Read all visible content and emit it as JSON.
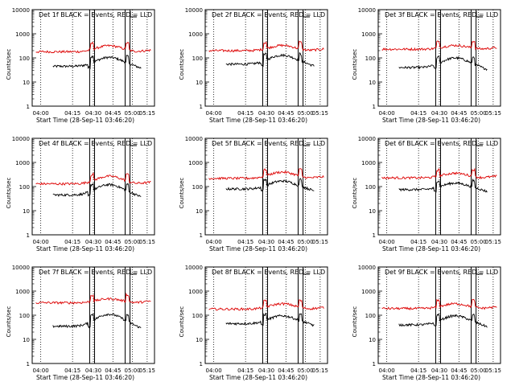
{
  "chart_data": [
    {
      "type": "line",
      "title": "Det 1f BLACK = Events, RED = LLD",
      "ylabel": "Counts/sec",
      "xlabel": "Start Time (28-Sep-11 03:46:20)",
      "xticks": [
        "04:00",
        "04:15",
        "04:30",
        "04:45",
        "05:00",
        "05:15"
      ],
      "yticks": [
        "1",
        "10",
        "100",
        "1000",
        "10000"
      ],
      "yscale": "log",
      "ylim": [
        1,
        10000
      ],
      "series": [
        {
          "color": "#000000",
          "base": 45,
          "peak": 105
        },
        {
          "color": "#dd0000",
          "base": 180,
          "peak": 320
        }
      ]
    },
    {
      "type": "line",
      "title": "Det 2f BLACK = Events, RED = LLD",
      "ylabel": "Counts/sec",
      "xlabel": "Start Time (28-Sep-11 03:46:20)",
      "xticks": [
        "04:00",
        "04:15",
        "04:30",
        "04:45",
        "05:00",
        "05:15"
      ],
      "yticks": [
        "1",
        "10",
        "100",
        "1000",
        "10000"
      ],
      "yscale": "log",
      "ylim": [
        1,
        10000
      ],
      "series": [
        {
          "color": "#000000",
          "base": 55,
          "peak": 130
        },
        {
          "color": "#dd0000",
          "base": 200,
          "peak": 330
        }
      ]
    },
    {
      "type": "line",
      "title": "Det 3f BLACK = Events, RED = LLD",
      "ylabel": "Counts/sec",
      "xlabel": "Start Time (28-Sep-11 03:46:20)",
      "xticks": [
        "04:00",
        "04:15",
        "04:30",
        "04:45",
        "05:00",
        "05:15"
      ],
      "yticks": [
        "1",
        "10",
        "100",
        "1000",
        "10000"
      ],
      "yscale": "log",
      "ylim": [
        1,
        10000
      ],
      "series": [
        {
          "color": "#000000",
          "base": 40,
          "peak": 100
        },
        {
          "color": "#dd0000",
          "base": 230,
          "peak": 330
        }
      ]
    },
    {
      "type": "line",
      "title": "Det 4f BLACK = Events, RED = LLD",
      "ylabel": "Counts/sec",
      "xlabel": "Start Time (28-Sep-11 03:46:20)",
      "xticks": [
        "04:00",
        "04:15",
        "04:30",
        "04:45",
        "05:00",
        "05:15"
      ],
      "yticks": [
        "1",
        "10",
        "100",
        "1000",
        "10000"
      ],
      "yscale": "log",
      "ylim": [
        1,
        10000
      ],
      "series": [
        {
          "color": "#000000",
          "base": 45,
          "peak": 120
        },
        {
          "color": "#dd0000",
          "base": 130,
          "peak": 270
        }
      ]
    },
    {
      "type": "line",
      "title": "Det 5f BLACK = Events, RED = LLD",
      "ylabel": "Counts/sec",
      "xlabel": "Start Time (28-Sep-11 03:46:20)",
      "xticks": [
        "04:00",
        "04:15",
        "04:30",
        "04:45",
        "05:00",
        "05:15"
      ],
      "yticks": [
        "1",
        "10",
        "100",
        "1000",
        "10000"
      ],
      "yscale": "log",
      "ylim": [
        1,
        10000
      ],
      "series": [
        {
          "color": "#000000",
          "base": 80,
          "peak": 170
        },
        {
          "color": "#dd0000",
          "base": 220,
          "peak": 400
        }
      ]
    },
    {
      "type": "line",
      "title": "Det 6f BLACK = Events, RED = LLD",
      "ylabel": "Counts/sec",
      "xlabel": "Start Time (28-Sep-11 03:46:20)",
      "xticks": [
        "04:00",
        "04:15",
        "04:30",
        "04:45",
        "05:00",
        "05:15"
      ],
      "yticks": [
        "1",
        "10",
        "100",
        "1000",
        "10000"
      ],
      "yscale": "log",
      "ylim": [
        1,
        10000
      ],
      "series": [
        {
          "color": "#000000",
          "base": 75,
          "peak": 140
        },
        {
          "color": "#dd0000",
          "base": 230,
          "peak": 360
        }
      ]
    },
    {
      "type": "line",
      "title": "Det 7f BLACK = Events, RED = LLD",
      "ylabel": "Counts/sec",
      "xlabel": "Start Time (28-Sep-11 03:46:20)",
      "xticks": [
        "04:00",
        "04:15",
        "04:30",
        "04:45",
        "05:00",
        "05:15"
      ],
      "yticks": [
        "1",
        "10",
        "100",
        "1000",
        "10000"
      ],
      "yscale": "log",
      "ylim": [
        1,
        10000
      ],
      "series": [
        {
          "color": "#000000",
          "base": 35,
          "peak": 110
        },
        {
          "color": "#dd0000",
          "base": 330,
          "peak": 480
        }
      ]
    },
    {
      "type": "line",
      "title": "Det 8f BLACK = Events, RED = LLD",
      "ylabel": "Counts/sec",
      "xlabel": "Start Time (28-Sep-11 03:46:20)",
      "xticks": [
        "04:00",
        "04:15",
        "04:30",
        "04:45",
        "05:00",
        "05:15"
      ],
      "yticks": [
        "1",
        "10",
        "100",
        "1000",
        "10000"
      ],
      "yscale": "log",
      "ylim": [
        1,
        10000
      ],
      "series": [
        {
          "color": "#000000",
          "base": 45,
          "peak": 95
        },
        {
          "color": "#dd0000",
          "base": 180,
          "peak": 300
        }
      ]
    },
    {
      "type": "line",
      "title": "Det 9f BLACK = Events, RED = LLD",
      "ylabel": "Counts/sec",
      "xlabel": "Start Time (28-Sep-11 03:46:20)",
      "xticks": [
        "04:00",
        "04:15",
        "04:30",
        "04:45",
        "05:00",
        "05:15"
      ],
      "yticks": [
        "1",
        "10",
        "100",
        "1000",
        "10000"
      ],
      "yscale": "log",
      "ylim": [
        1,
        10000
      ],
      "series": [
        {
          "color": "#000000",
          "base": 40,
          "peak": 95
        },
        {
          "color": "#dd0000",
          "base": 190,
          "peak": 300
        }
      ]
    }
  ]
}
